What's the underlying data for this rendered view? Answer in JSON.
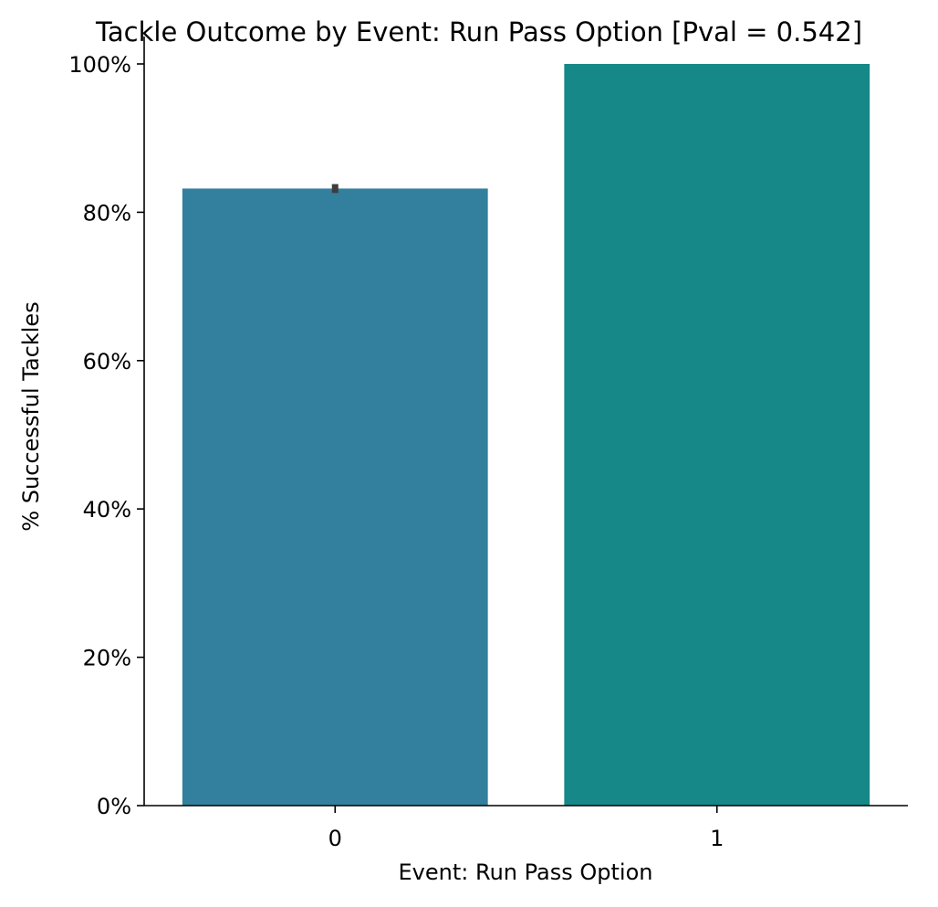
{
  "chart_data": {
    "type": "bar",
    "title": "Tackle Outcome by Event: Run Pass Option [Pval = 0.542]",
    "xlabel": "Event: Run Pass Option",
    "ylabel": "% Successful Tackles",
    "categories": [
      "0",
      "1"
    ],
    "values": [
      83.2,
      100.0
    ],
    "error_bars": [
      [
        82.6,
        83.8
      ],
      null
    ],
    "ylim": [
      0,
      100
    ],
    "yticks": [
      0,
      20,
      40,
      60,
      80,
      100
    ],
    "ytick_labels": [
      "0%",
      "20%",
      "40%",
      "60%",
      "80%",
      "100%"
    ],
    "bar_colors": [
      "#337F9E",
      "#168887"
    ],
    "errorbar_color": "#3d3d3d",
    "grid": false,
    "legend": "none"
  }
}
